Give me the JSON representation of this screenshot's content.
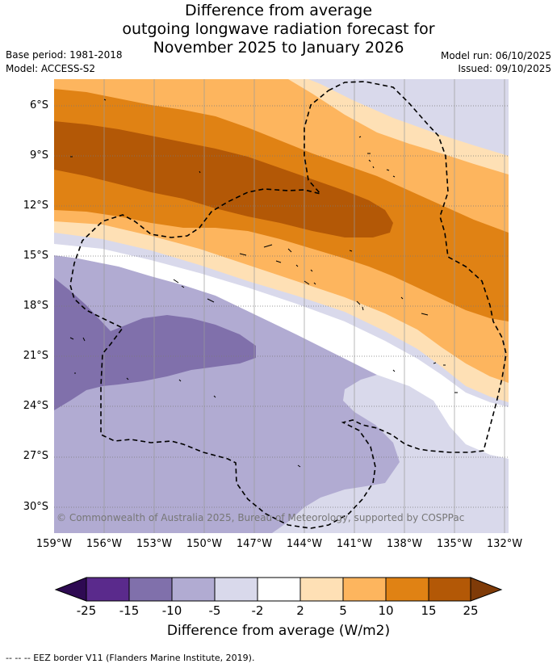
{
  "header": {
    "title_lines": [
      "Difference from average",
      "outgoing longwave radiation forecast for",
      "November 2025 to January 2026"
    ],
    "base_period": "Base period: 1981-2018",
    "model": "Model: ACCESS-S2",
    "model_run": "Model run: 06/10/2025",
    "issued": "Issued: 09/10/2025"
  },
  "map": {
    "lat_labels": [
      "6°S",
      "9°S",
      "12°S",
      "15°S",
      "18°S",
      "21°S",
      "24°S",
      "27°S",
      "30°S"
    ],
    "lon_labels": [
      "159°W",
      "156°W",
      "153°W",
      "150°W",
      "147°W",
      "144°W",
      "141°W",
      "138°W",
      "135°W",
      "132°W"
    ],
    "copyright": "© Commonwealth of Australia 2025, Bureau of Meteorology, supported by COSPPac"
  },
  "colorbar": {
    "ticks": [
      "-25",
      "-15",
      "-10",
      "-5",
      "-2",
      "2",
      "5",
      "10",
      "15",
      "25"
    ],
    "title": "Difference from average (W/m2)",
    "colors": {
      "under": "#2e0a52",
      "c1": "#5a2a8c",
      "c2": "#8070ab",
      "c3": "#b1abd2",
      "c4": "#d9d9eb",
      "c5": "#ffffff",
      "c6": "#fee0b5",
      "c7": "#fdb55e",
      "c8": "#e08214",
      "c9": "#b35806",
      "over": "#7f3b08"
    }
  },
  "footer": "--  --  -- EEZ border V11 (Flanders Marine Institute, 2019)."
}
